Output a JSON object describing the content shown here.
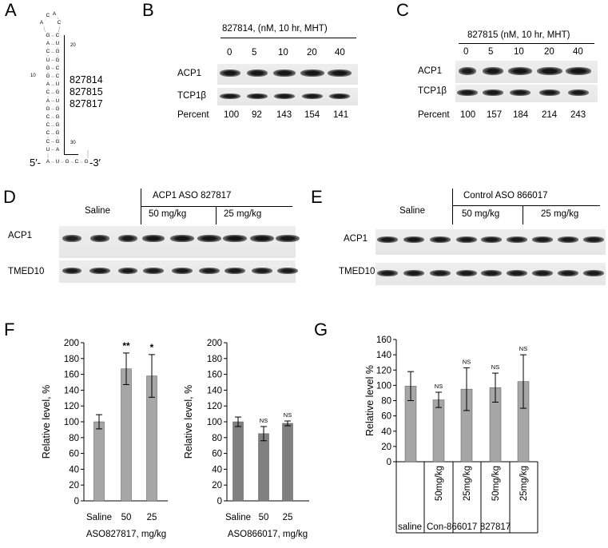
{
  "panels": {
    "A": "A",
    "B": "B",
    "C": "C",
    "D": "D",
    "E": "E",
    "F": "F",
    "G": "G"
  },
  "panel_a": {
    "loop": [
      "A",
      "C",
      "A",
      "C"
    ],
    "stem_left": [
      "G",
      "A",
      "C",
      "U",
      "G",
      "G",
      "A",
      "C",
      "A",
      "G",
      "C",
      "C",
      "C",
      "C",
      "U"
    ],
    "stem_right": [
      "C",
      "U",
      "G",
      "G",
      "C",
      "C",
      "U",
      "G",
      "U",
      "G",
      "G",
      "G",
      "G",
      "G",
      "A"
    ],
    "tail_left": "5′-",
    "tail_seq": [
      "A",
      "U",
      "G",
      "C",
      "G"
    ],
    "tail_right": "-3′",
    "num_20": "20",
    "num_10": "10",
    "num_30": "30",
    "asos": [
      "827814",
      "827815",
      "827817"
    ]
  },
  "panel_b": {
    "title": "827814,  (nM, 10 hr, MHT)",
    "doses": [
      "0",
      "5",
      "10",
      "20",
      "40"
    ],
    "rows": [
      "ACP1",
      "TCP1β"
    ],
    "percent_label": "Percent",
    "percent": [
      "100",
      "92",
      "143",
      "154",
      "141"
    ],
    "band_intensity": [
      0.95,
      0.95,
      0.96,
      0.98,
      0.98
    ]
  },
  "panel_c": {
    "title": "827815 (nM, 10 hr, MHT)",
    "doses": [
      "0",
      "5",
      "10",
      "20",
      "40"
    ],
    "rows": [
      "ACP1",
      "TCP1β"
    ],
    "percent_label": "Percent",
    "percent": [
      "100",
      "157",
      "184",
      "214",
      "243"
    ],
    "band_intensity": [
      0.8,
      0.9,
      0.97,
      0.98,
      0.99
    ]
  },
  "panel_d": {
    "saline": "Saline",
    "group": "ACP1 ASO 827817",
    "dose1": "50 mg/kg",
    "dose2": "25 mg/kg",
    "rows": [
      "ACP1",
      "TMED10"
    ]
  },
  "panel_e": {
    "saline": "Saline",
    "group": "Control ASO 866017",
    "dose1": "50 mg/kg",
    "dose2": "25 mg/kg",
    "rows": [
      "ACP1",
      "TMED10"
    ]
  },
  "chart_data": [
    {
      "type": "bar",
      "panel": "F-left",
      "categories": [
        "Saline",
        "50",
        "25"
      ],
      "values": [
        100,
        167,
        158
      ],
      "errors": [
        9,
        20,
        27
      ],
      "significance": [
        "",
        "**",
        "*"
      ],
      "xlabel": "ASO827817, mg/kg",
      "ylabel": "Relative level, %",
      "ylim": [
        0,
        200
      ],
      "yticks": [
        "0",
        "20",
        "40",
        "60",
        "80",
        "100",
        "120",
        "140",
        "160",
        "180",
        "200"
      ],
      "color": "#a6a6a6"
    },
    {
      "type": "bar",
      "panel": "F-right",
      "categories": [
        "Saline",
        "50",
        "25"
      ],
      "values": [
        100,
        85,
        98
      ],
      "errors": [
        6,
        9,
        3
      ],
      "significance": [
        "",
        "NS",
        "NS"
      ],
      "xlabel": "ASO866017, mg/kg",
      "ylabel": "Relative level, %",
      "ylim": [
        0,
        200
      ],
      "yticks": [
        "0",
        "20",
        "40",
        "60",
        "80",
        "100",
        "120",
        "140",
        "160",
        "180",
        "200"
      ],
      "color": "#808080"
    },
    {
      "type": "bar",
      "panel": "G",
      "categories": [
        "",
        "50mg/kg",
        "25mg/kg",
        "50mg/kg",
        "25mg/kg"
      ],
      "groups": [
        "saline",
        "Con-866017",
        "827817"
      ],
      "values": [
        99,
        81,
        95,
        97,
        105
      ],
      "errors": [
        19,
        10,
        28,
        19,
        35
      ],
      "significance": [
        "",
        "NS",
        "NS",
        "NS",
        "NS"
      ],
      "ylabel": "Relative level %",
      "ylim": [
        0,
        160
      ],
      "yticks": [
        "0",
        "20",
        "40",
        "60",
        "80",
        "100",
        "120",
        "140",
        "160"
      ],
      "color": "#a6a6a6"
    }
  ]
}
